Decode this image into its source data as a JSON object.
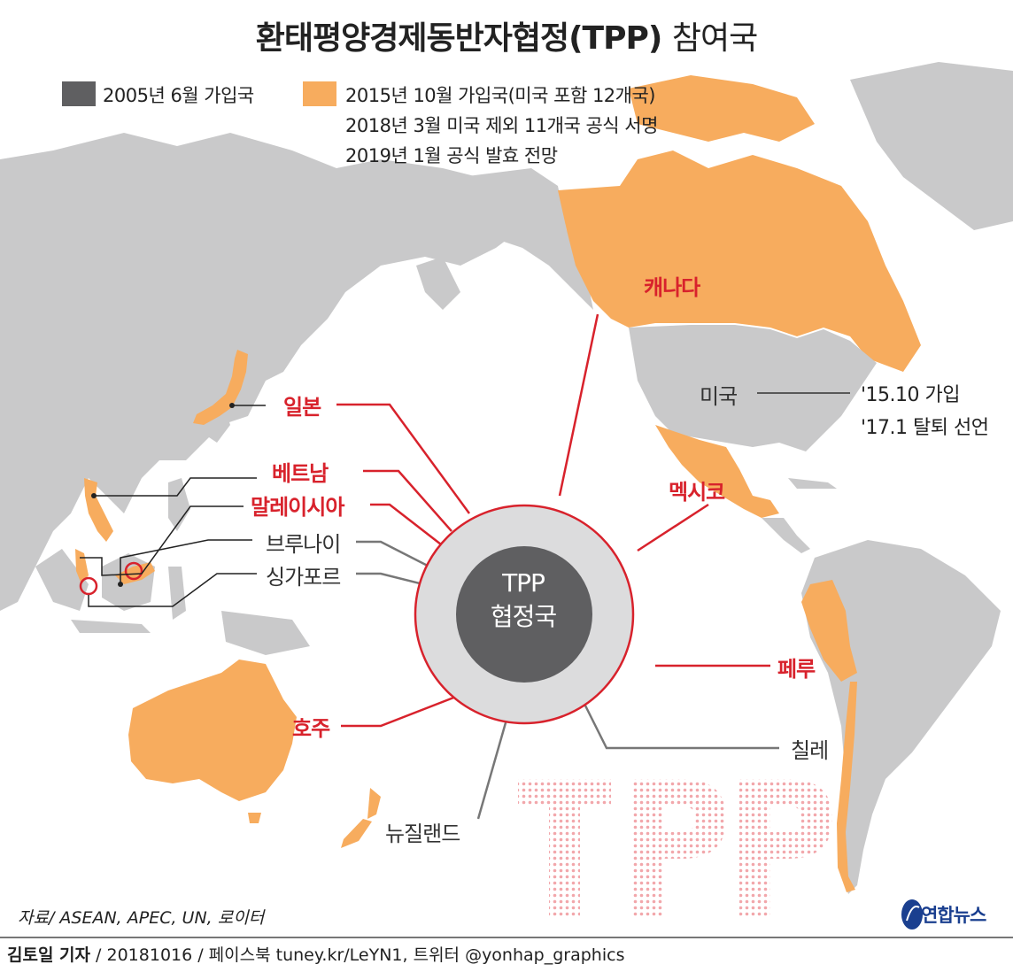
{
  "title": {
    "main": "환태평양경제동반자협정(TPP)",
    "suffix": "참여국"
  },
  "legend": {
    "gray_label": "2005년 6월 가입국",
    "orange_lines": [
      "2015년 10월 가입국(미국 포함 12개국)",
      "2018년 3월 미국 제외 11개국 공식 서명",
      "2019년 1월 공식 발효 전망"
    ],
    "gray_color": "#5f5f61",
    "orange_color": "#f7ac5e"
  },
  "countries": {
    "canada": "캐나다",
    "usa": "미국",
    "mexico": "멕시코",
    "japan": "일본",
    "vietnam": "베트남",
    "malaysia": "말레이시아",
    "brunei": "브루나이",
    "singapore": "싱가포르",
    "australia": "호주",
    "newzealand": "뉴질랜드",
    "peru": "페루",
    "chile": "칠레"
  },
  "usa_note": [
    "'15.10 가입",
    "'17.1 탈퇴 선언"
  ],
  "center": {
    "line1": "TPP",
    "line2": "협정국"
  },
  "watermark": "TPP",
  "source": "자료/ ASEAN, APEC, UN, 로이터",
  "footer": {
    "author": "김토일 기자",
    "rest": " / 20181016 / 페이스북 tuney.kr/LeYN1, 트위터 @yonhap_graphics"
  },
  "logo_text": "연합뉴스",
  "colors": {
    "accent_red": "#d8222c",
    "land_gray": "#c9c9ca",
    "orange": "#f7ac5e",
    "dark": "#5f5f61"
  }
}
